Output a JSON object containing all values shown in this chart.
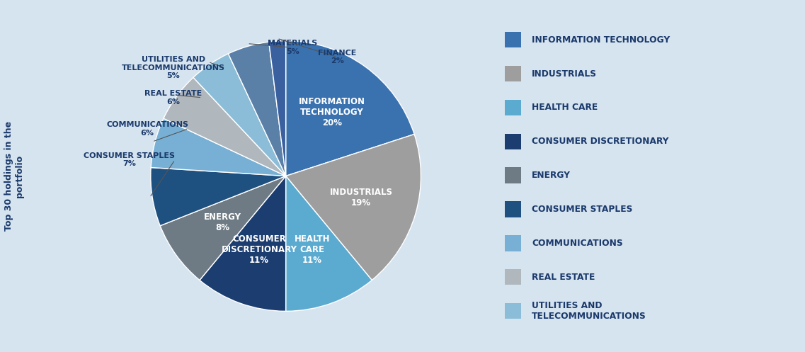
{
  "sectors": [
    "INFORMATION\nTECHNOLOGY",
    "INDUSTRIALS",
    "HEALTH\nCARE",
    "CONSUMER\nDISCRETIONARY",
    "ENERGY",
    "CONSUMER STAPLES",
    "COMMUNICATIONS",
    "REAL ESTATE",
    "UTILITIES AND\nTELECOMMUNICATIONS",
    "MATERIALS",
    "FINANCE"
  ],
  "legend_labels": [
    "INFORMATION TECHNOLOGY",
    "INDUSTRIALS",
    "HEALTH CARE",
    "CONSUMER DISCRETIONARY",
    "ENERGY",
    "CONSUMER STAPLES",
    "COMMUNICATIONS",
    "REAL ESTATE",
    "UTILITIES AND\nTELECOMMUNICATIONS"
  ],
  "values": [
    20,
    19,
    11,
    11,
    8,
    7,
    6,
    6,
    5,
    5,
    2
  ],
  "colors": [
    "#3A72B0",
    "#9E9E9E",
    "#5BAAD0",
    "#1B3D6F",
    "#6E7B85",
    "#1E5080",
    "#78B0D5",
    "#B0B8BE",
    "#8BBDD8",
    "#5A80A8",
    "#3A60A0"
  ],
  "bg_color": "#D6E4F0",
  "text_color": "#1B3A6B",
  "ylabel": "Top 30 holdings in the\nportfolio"
}
